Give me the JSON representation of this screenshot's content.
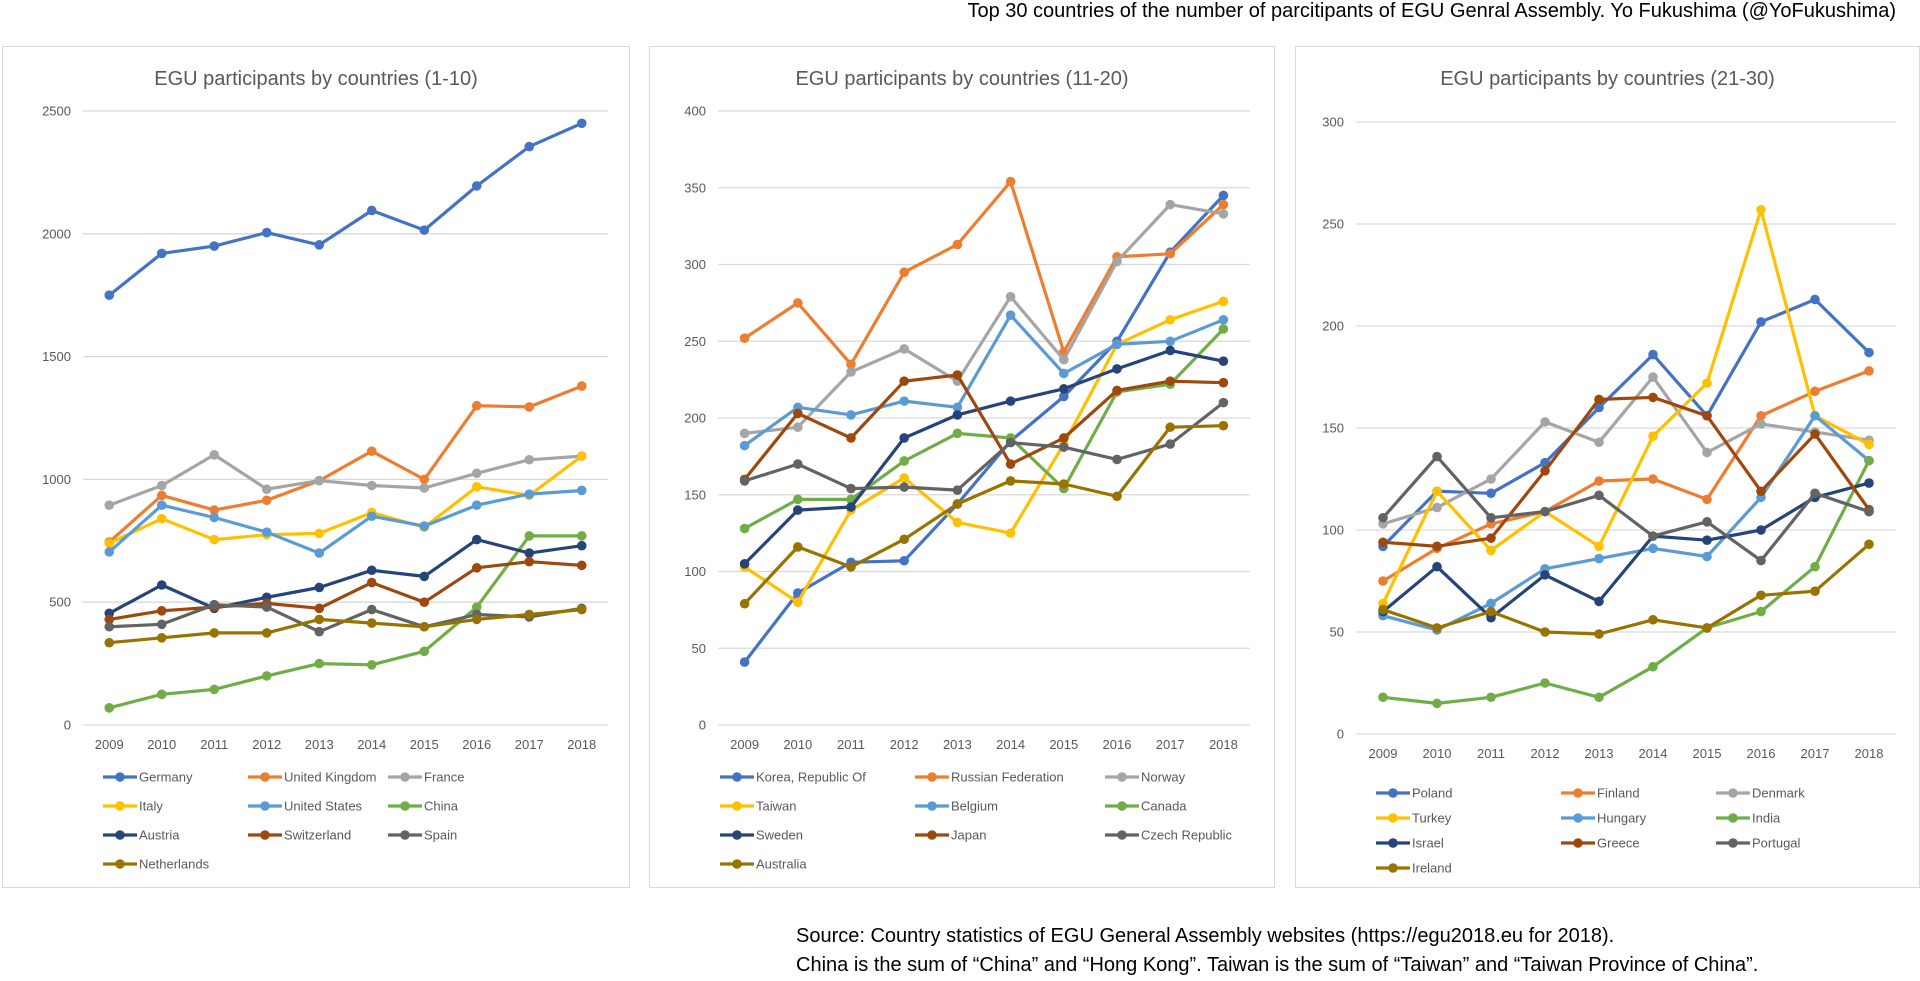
{
  "header": {
    "text": "Top 30 countries of the number of parcitipants of EGU Genral Assembly.  Yo Fukushima (@YoFukushima)"
  },
  "footer": {
    "line1": "Source: Country statistics of EGU General Assembly websites (https://egu2018.eu for 2018).",
    "line2": "China is the sum of “China” and “Hong Kong”. Taiwan is the sum of “Taiwan” and “Taiwan Province of China”."
  },
  "chart_data": [
    {
      "type": "line",
      "title": "EGU participants by countries (1-10)",
      "x": [
        "2009",
        "2010",
        "2011",
        "2012",
        "2013",
        "2014",
        "2015",
        "2016",
        "2017",
        "2018"
      ],
      "ylim": [
        0,
        2500
      ],
      "yticks": [
        0,
        500,
        1000,
        1500,
        2000,
        2500
      ],
      "grid": true,
      "legend": "bottom",
      "series": [
        {
          "name": "Germany",
          "color": "#4472c4",
          "values": [
            1750,
            1920,
            1950,
            2005,
            1955,
            2095,
            2015,
            2195,
            2355,
            2450
          ]
        },
        {
          "name": "United Kingdom",
          "color": "#ed7d31",
          "values": [
            745,
            935,
            875,
            915,
            995,
            1115,
            1000,
            1300,
            1295,
            1380
          ]
        },
        {
          "name": "France",
          "color": "#a5a5a5",
          "values": [
            895,
            975,
            1100,
            960,
            995,
            975,
            965,
            1025,
            1080,
            1095
          ]
        },
        {
          "name": "Italy",
          "color": "#ffc000",
          "values": [
            740,
            840,
            755,
            775,
            780,
            865,
            805,
            970,
            935,
            1095
          ]
        },
        {
          "name": "United States",
          "color": "#5b9bd5",
          "values": [
            705,
            895,
            845,
            785,
            700,
            850,
            810,
            895,
            940,
            955
          ]
        },
        {
          "name": "China",
          "color": "#70ad47",
          "values": [
            70,
            125,
            145,
            200,
            250,
            245,
            300,
            480,
            770,
            770
          ]
        },
        {
          "name": "Austria",
          "color": "#264478",
          "values": [
            455,
            570,
            475,
            520,
            560,
            630,
            605,
            755,
            700,
            730
          ]
        },
        {
          "name": "Switzerland",
          "color": "#9e480e",
          "values": [
            430,
            465,
            480,
            495,
            475,
            580,
            500,
            640,
            665,
            650
          ]
        },
        {
          "name": "Spain",
          "color": "#636363",
          "values": [
            400,
            410,
            490,
            480,
            380,
            470,
            400,
            450,
            440,
            475
          ]
        },
        {
          "name": "Netherlands",
          "color": "#997300",
          "values": [
            335,
            355,
            375,
            375,
            430,
            415,
            400,
            430,
            450,
            470
          ]
        }
      ]
    },
    {
      "type": "line",
      "title": "EGU participants by countries (11-20)",
      "x": [
        "2009",
        "2010",
        "2011",
        "2012",
        "2013",
        "2014",
        "2015",
        "2016",
        "2017",
        "2018"
      ],
      "ylim": [
        0,
        400
      ],
      "yticks": [
        0,
        50,
        100,
        150,
        200,
        250,
        300,
        350,
        400
      ],
      "grid": true,
      "legend": "bottom",
      "series": [
        {
          "name": "Korea, Republic Of",
          "color": "#4472c4",
          "values": [
            41,
            86,
            106,
            107,
            144,
            185,
            214,
            250,
            308,
            345
          ]
        },
        {
          "name": "Russian Federation",
          "color": "#ed7d31",
          "values": [
            252,
            275,
            235,
            295,
            313,
            354,
            243,
            305,
            307,
            339
          ]
        },
        {
          "name": "Norway",
          "color": "#a5a5a5",
          "values": [
            190,
            194,
            230,
            245,
            224,
            279,
            238,
            302,
            339,
            333
          ]
        },
        {
          "name": "Taiwan",
          "color": "#ffc000",
          "values": [
            103,
            80,
            140,
            161,
            132,
            125,
            183,
            248,
            264,
            276
          ]
        },
        {
          "name": "Belgium",
          "color": "#5b9bd5",
          "values": [
            182,
            207,
            202,
            211,
            207,
            267,
            229,
            248,
            250,
            264
          ]
        },
        {
          "name": "Canada",
          "color": "#70ad47",
          "values": [
            128,
            147,
            147,
            172,
            190,
            187,
            154,
            217,
            222,
            258
          ]
        },
        {
          "name": "Sweden",
          "color": "#264478",
          "values": [
            105,
            140,
            142,
            187,
            202,
            211,
            219,
            232,
            244,
            237
          ]
        },
        {
          "name": "Japan",
          "color": "#9e480e",
          "values": [
            160,
            203,
            187,
            224,
            228,
            170,
            187,
            218,
            224,
            223
          ]
        },
        {
          "name": "Czech Republic",
          "color": "#636363",
          "values": [
            159,
            170,
            154,
            155,
            153,
            184,
            181,
            173,
            183,
            210
          ]
        },
        {
          "name": "Australia",
          "color": "#997300",
          "values": [
            79,
            116,
            103,
            121,
            144,
            159,
            157,
            149,
            194,
            195
          ]
        }
      ]
    },
    {
      "type": "line",
      "title": "EGU participants by countries (21-30)",
      "x": [
        "2009",
        "2010",
        "2011",
        "2012",
        "2013",
        "2014",
        "2015",
        "2016",
        "2017",
        "2018"
      ],
      "ylim": [
        0,
        300
      ],
      "yticks": [
        0,
        50,
        100,
        150,
        200,
        250,
        300
      ],
      "grid": true,
      "legend": "bottom",
      "series": [
        {
          "name": "Poland",
          "color": "#4472c4",
          "values": [
            92,
            119,
            118,
            133,
            160,
            186,
            156,
            202,
            213,
            187
          ]
        },
        {
          "name": "Finland",
          "color": "#ed7d31",
          "values": [
            75,
            91,
            103,
            109,
            124,
            125,
            115,
            156,
            168,
            178
          ]
        },
        {
          "name": "Denmark",
          "color": "#a5a5a5",
          "values": [
            103,
            111,
            125,
            153,
            143,
            175,
            138,
            152,
            148,
            144
          ]
        },
        {
          "name": "Turkey",
          "color": "#ffc000",
          "values": [
            64,
            119,
            90,
            109,
            92,
            146,
            172,
            257,
            156,
            142
          ]
        },
        {
          "name": "Hungary",
          "color": "#5b9bd5",
          "values": [
            58,
            51,
            64,
            81,
            86,
            91,
            87,
            116,
            156,
            134
          ]
        },
        {
          "name": "India",
          "color": "#70ad47",
          "values": [
            18,
            15,
            18,
            25,
            18,
            33,
            52,
            60,
            82,
            134
          ]
        },
        {
          "name": "Israel",
          "color": "#264478",
          "values": [
            60,
            82,
            57,
            78,
            65,
            97,
            95,
            100,
            116,
            123
          ]
        },
        {
          "name": "Greece",
          "color": "#9e480e",
          "values": [
            94,
            92,
            96,
            129,
            164,
            165,
            156,
            119,
            147,
            110
          ]
        },
        {
          "name": "Portugal",
          "color": "#636363",
          "values": [
            106,
            136,
            106,
            109,
            117,
            97,
            104,
            85,
            118,
            109
          ]
        },
        {
          "name": "Ireland",
          "color": "#997300",
          "values": [
            61,
            52,
            60,
            50,
            49,
            56,
            52,
            68,
            70,
            93
          ]
        }
      ]
    }
  ]
}
